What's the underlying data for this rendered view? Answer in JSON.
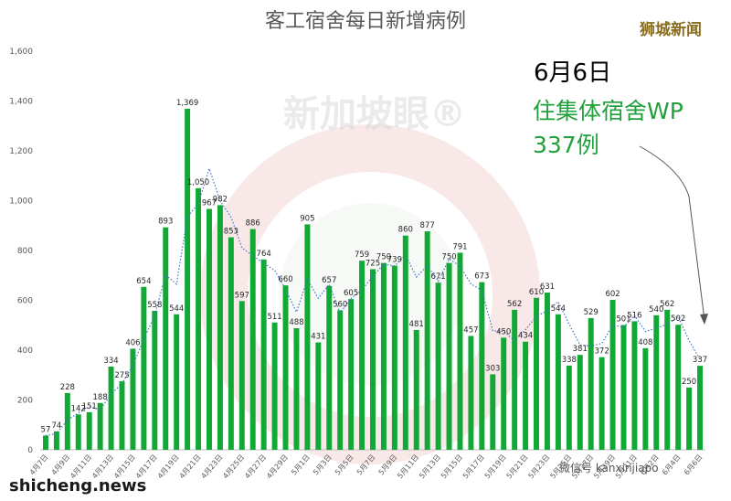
{
  "chart_data": {
    "type": "bar",
    "title": "客工宿舍每日新增病例",
    "ylim": [
      0,
      1600
    ],
    "yticks": [
      "0",
      "200",
      "400",
      "600",
      "800",
      "1,000",
      "1,200",
      "1,400",
      "1,600"
    ],
    "categories": [
      "4月7日",
      "4月8日",
      "4月9日",
      "4月10日",
      "4月11日",
      "4月12日",
      "4月13日",
      "4月14日",
      "4月15日",
      "4月16日",
      "4月17日",
      "4月18日",
      "4月19日",
      "4月20日",
      "4月21日",
      "4月22日",
      "4月23日",
      "4月24日",
      "4月25日",
      "4月26日",
      "4月27日",
      "4月28日",
      "4月29日",
      "4月30日",
      "5月1日",
      "5月2日",
      "5月3日",
      "5月4日",
      "5月5日",
      "5月6日",
      "5月7日",
      "5月8日",
      "5月9日",
      "5月10日",
      "5月11日",
      "5月12日",
      "5月13日",
      "5月14日",
      "5月15日",
      "5月16日",
      "5月17日",
      "5月18日",
      "5月19日",
      "5月20日",
      "5月21日",
      "5月22日",
      "5月23日",
      "5月24日",
      "5月25日",
      "5月26日",
      "5月27日",
      "5月28日",
      "5月29日",
      "5月30日",
      "5月31日",
      "6月1日",
      "6月2日",
      "6月3日",
      "6月4日",
      "6月5日",
      "6月6日"
    ],
    "xticks": [
      "4月7日",
      "4月9日",
      "4月11日",
      "4月13日",
      "4月15日",
      "4月17日",
      "4月19日",
      "4月21日",
      "4月23日",
      "4月25日",
      "4月27日",
      "4月29日",
      "5月1日",
      "5月3日",
      "5月5日",
      "5月7日",
      "5月9日",
      "5月11日",
      "5月13日",
      "5月15日",
      "5月17日",
      "5月19日",
      "5月21日",
      "5月23日",
      "5月25日",
      "5月27日",
      "5月29日",
      "5月31日",
      "6月2日",
      "6月4日",
      "6月6日"
    ],
    "values": [
      57,
      74,
      228,
      142,
      151,
      188,
      334,
      275,
      406,
      654,
      558,
      893,
      544,
      1369,
      1050,
      967,
      982,
      853,
      597,
      886,
      764,
      511,
      660,
      488,
      905,
      431,
      657,
      560,
      605,
      759,
      725,
      750,
      739,
      860,
      481,
      877,
      671,
      750,
      791,
      457,
      673,
      303,
      450,
      562,
      434,
      610,
      631,
      544,
      338,
      381,
      529,
      372,
      602,
      501,
      516,
      408,
      540,
      562,
      502,
      250,
      337
    ],
    "labels": [
      "57",
      "74",
      "228",
      "142",
      "151",
      "188",
      "334",
      "275",
      "406",
      "654",
      "558",
      "893",
      "544",
      "1,369",
      "1,050",
      "967",
      "982",
      "853",
      "597",
      "886",
      "764",
      "511",
      "660",
      "488",
      "905",
      "431",
      "657",
      "560",
      "605",
      "759",
      "725",
      "750",
      "739",
      "860",
      "481",
      "877",
      "671",
      "750",
      "791",
      "457",
      "673",
      "303",
      "450",
      "562",
      "434",
      "610",
      "631",
      "544",
      "338",
      "381",
      "529",
      "372",
      "602",
      "501",
      "516",
      "408",
      "540",
      "562",
      "502",
      "250",
      "337"
    ],
    "trendline": "dotted",
    "grid": false,
    "legend": "none"
  },
  "watermark": "新加坡眼®",
  "brand": "狮城新闻",
  "annotation": {
    "date": "6月6日",
    "line1": "住集体宿舍WP",
    "line2": "337例"
  },
  "site": "shicheng.news",
  "wechat": "微信号 kanxinjiapo",
  "colors": {
    "bar": "#12a835",
    "trend": "#4472c4",
    "annotation": "#22a03c"
  }
}
